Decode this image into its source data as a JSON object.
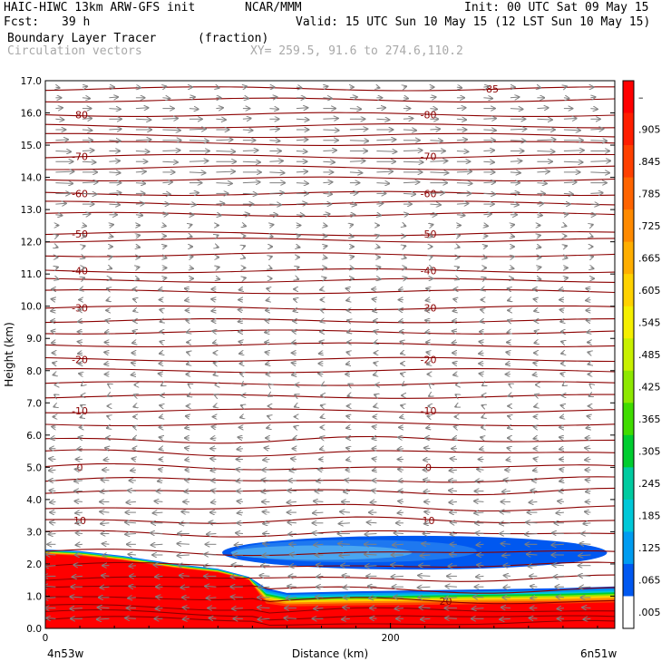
{
  "header": {
    "line1_left": "HAIC-HIWC 13km ARW-GFS init",
    "line1_mid": "NCAR/MMM",
    "line1_right": "Init: 00 UTC Sat 09 May 15",
    "line2_left": "Fcst:",
    "line2_fcst": "39 h",
    "line2_right": "Valid: 15 UTC Sun 10 May 15 (12 LST Sun 10 May 15)",
    "line3_left": "Boundary Layer Tracer",
    "line3_units": "(fraction)",
    "line4_left": "Circulation vectors",
    "line4_xy": "XY= 259.5, 91.6 to 274.6,110.2"
  },
  "colors": {
    "contour": "#8b0000",
    "vector": "#808080",
    "plot_bg": "#ffffff"
  },
  "chart_data": {
    "type": "heatmap",
    "title": "Boundary Layer Tracer",
    "units": "(fraction)",
    "xlabel": "Distance (km)",
    "ylabel": "Height (km)",
    "xlim": [
      0,
      330
    ],
    "ylim": [
      0,
      17
    ],
    "x_ticks": [
      {
        "value": 0,
        "label": "0"
      },
      {
        "value": 200,
        "label": "200"
      }
    ],
    "x_end_labels": {
      "left": "4n53w",
      "right": "6n51w"
    },
    "y_ticks": [
      "0.0",
      "1.0",
      "2.0",
      "3.0",
      "4.0",
      "5.0",
      "6.0",
      "7.0",
      "8.0",
      "9.0",
      "10.0",
      "11.0",
      "12.0",
      "13.0",
      "14.0",
      "15.0",
      "16.0",
      "17.0"
    ],
    "colorbar": {
      "labels": [
        "–",
        ".905",
        ".845",
        ".785",
        ".725",
        ".665",
        ".605",
        ".545",
        ".485",
        ".425",
        ".365",
        ".305",
        ".245",
        ".185",
        ".125",
        ".065",
        ".005"
      ],
      "colors": [
        "#ff0000",
        "#ff1e00",
        "#ff4000",
        "#ff6400",
        "#ff8a00",
        "#ffae00",
        "#ffd200",
        "#f5ef00",
        "#c8f000",
        "#8ee800",
        "#40dc00",
        "#00cd30",
        "#00cba0",
        "#00c8d8",
        "#009cf0",
        "#0058f0",
        "#ffffff"
      ]
    },
    "temperature_contours": [
      {
        "label": "-85",
        "height": 16.75
      },
      {
        "label": "-80",
        "height": 15.95
      },
      {
        "label": "-70",
        "height": 14.65
      },
      {
        "label": "-60",
        "height": 13.5
      },
      {
        "label": "-50",
        "height": 12.25
      },
      {
        "label": "-40",
        "height": 11.1
      },
      {
        "label": "-30",
        "height": 9.95
      },
      {
        "label": "-20",
        "height": 8.35
      },
      {
        "label": "-10",
        "height": 6.75
      },
      {
        "label": "0",
        "height": 5.0
      },
      {
        "label": "10",
        "height": 3.35
      },
      {
        "label": "20",
        "height": 0.85
      }
    ],
    "tracer_regions": [
      {
        "name": "boundary layer",
        "x_range": [
          0,
          330
        ],
        "top_height_km": [
          [
            0,
            2.4
          ],
          [
            40,
            2.2
          ],
          [
            100,
            1.9
          ],
          [
            125,
            1.3
          ],
          [
            140,
            1.1
          ],
          [
            330,
            1.3
          ]
        ]
      },
      {
        "name": "elevated layer",
        "x_range": [
          103,
          326
        ],
        "height_km": [
          1.9,
          2.9
        ]
      }
    ],
    "wind_vectors": {
      "upper_level_direction": "rightward",
      "lower_level_direction": "leftward"
    }
  }
}
